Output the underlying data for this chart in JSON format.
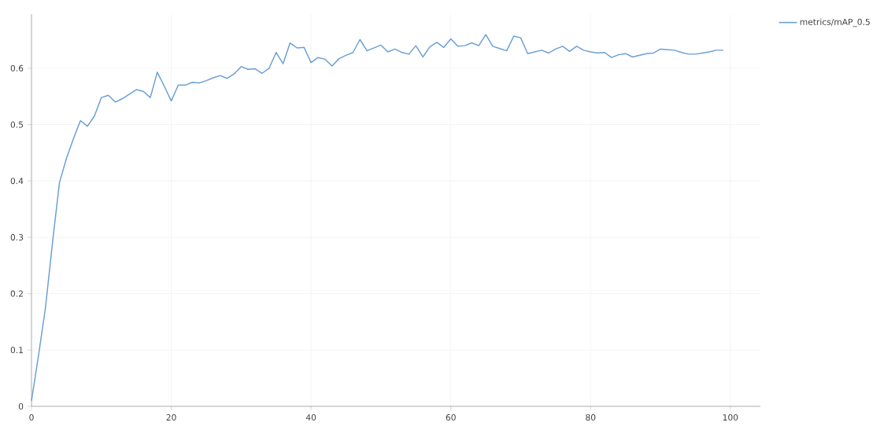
{
  "chart_data": {
    "type": "line",
    "xlim": [
      0,
      104.3
    ],
    "ylim": [
      0,
      0.696
    ],
    "xticks": [
      0,
      20,
      40,
      60,
      80,
      100
    ],
    "yticks": [
      0,
      0.1,
      0.2,
      0.3,
      0.4,
      0.5,
      0.6
    ],
    "grid": true,
    "legend": "top right",
    "marker": "none",
    "line_style": "solid",
    "x": [
      0,
      1,
      2,
      3,
      4,
      5,
      6,
      7,
      8,
      9,
      10,
      11,
      12,
      13,
      14,
      15,
      16,
      17,
      18,
      19,
      20,
      21,
      22,
      23,
      24,
      25,
      26,
      27,
      28,
      29,
      30,
      31,
      32,
      33,
      34,
      35,
      36,
      37,
      38,
      39,
      40,
      41,
      42,
      43,
      44,
      45,
      46,
      47,
      48,
      49,
      50,
      51,
      52,
      53,
      54,
      55,
      56,
      57,
      58,
      59,
      60,
      61,
      62,
      63,
      64,
      65,
      66,
      67,
      68,
      69,
      70,
      71,
      72,
      73,
      74,
      75,
      76,
      77,
      78,
      79,
      80,
      81,
      82,
      83,
      84,
      85,
      86,
      87,
      88,
      89,
      90,
      91,
      92,
      93,
      94,
      95,
      96,
      97,
      98,
      99
    ],
    "series": [
      {
        "name": "metrics/mAP_0.5",
        "color": "#6a9fd4",
        "values": [
          0.01,
          0.09,
          0.175,
          0.29,
          0.397,
          0.44,
          0.475,
          0.507,
          0.497,
          0.515,
          0.548,
          0.552,
          0.54,
          0.546,
          0.554,
          0.562,
          0.559,
          0.548,
          0.593,
          0.568,
          0.542,
          0.57,
          0.57,
          0.575,
          0.574,
          0.578,
          0.583,
          0.587,
          0.582,
          0.59,
          0.603,
          0.598,
          0.599,
          0.591,
          0.6,
          0.628,
          0.608,
          0.645,
          0.636,
          0.637,
          0.61,
          0.619,
          0.616,
          0.604,
          0.617,
          0.623,
          0.628,
          0.651,
          0.631,
          0.636,
          0.641,
          0.629,
          0.634,
          0.628,
          0.625,
          0.64,
          0.62,
          0.638,
          0.646,
          0.637,
          0.652,
          0.639,
          0.64,
          0.645,
          0.64,
          0.66,
          0.639,
          0.635,
          0.631,
          0.657,
          0.654,
          0.626,
          0.629,
          0.632,
          0.627,
          0.634,
          0.639,
          0.63,
          0.639,
          0.632,
          0.629,
          0.627,
          0.628,
          0.619,
          0.624,
          0.626,
          0.62,
          0.623,
          0.626,
          0.627,
          0.634,
          0.633,
          0.632,
          0.628,
          0.625,
          0.625,
          0.627,
          0.629,
          0.632,
          0.632
        ]
      }
    ]
  }
}
